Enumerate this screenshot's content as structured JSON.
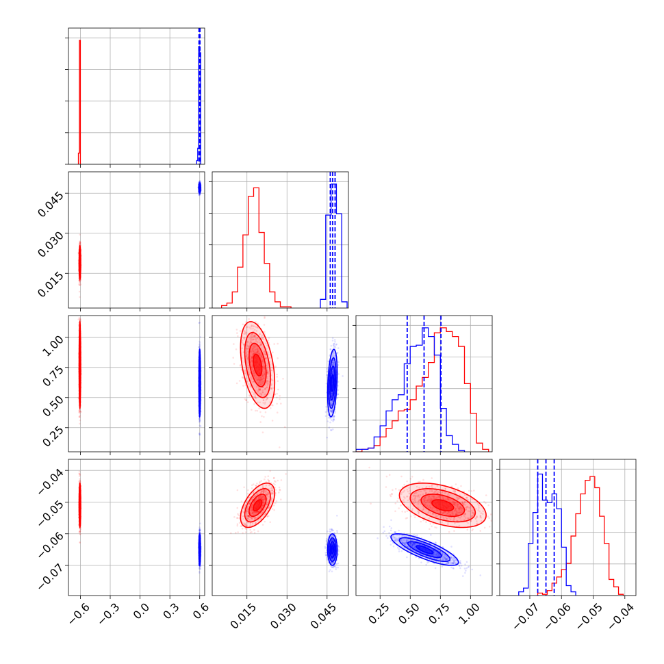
{
  "chart_data": {
    "type": "corner",
    "parameters": [
      {
        "ticks": [
          -0.6,
          -0.3,
          0.0,
          0.3,
          0.6
        ],
        "tick_labels": [
          "−0.6",
          "−0.3",
          "0.0",
          "0.3",
          "0.6"
        ]
      },
      {
        "ticks": [
          0.015,
          0.03,
          0.045
        ],
        "tick_labels": [
          "0.015",
          "0.030",
          "0.045"
        ]
      },
      {
        "ticks": [
          0.25,
          0.5,
          0.75,
          1.0
        ],
        "tick_labels": [
          "0.25",
          "0.50",
          "0.75",
          "1.00"
        ]
      },
      {
        "ticks": [
          -0.07,
          -0.06,
          -0.05,
          -0.04
        ],
        "tick_labels": [
          "−0.07",
          "−0.06",
          "−0.05",
          "−0.04"
        ]
      }
    ],
    "ranges": [
      [
        -0.72,
        0.65
      ],
      [
        0.002,
        0.053
      ],
      [
        0.05,
        1.18
      ],
      [
        -0.0795,
        -0.0365
      ]
    ],
    "grid": true,
    "series": [
      {
        "color": "#ff0000",
        "center": [
          -0.605,
          0.019,
          0.77,
          -0.051
        ],
        "sigma": [
          0.004,
          0.0032,
          0.18,
          0.0035
        ],
        "correlation": {
          "0-1": 0.0,
          "0-2": 0.0,
          "0-3": 0.0,
          "1-2": -0.4,
          "1-3": 0.55,
          "2-3": -0.45
        },
        "histograms": [
          {
            "edges": [
              -0.62,
              -0.61,
              -0.6
            ],
            "counts": [
              0.09,
              1.0
            ]
          },
          {
            "edges": [
              0.0055,
              0.0075,
              0.0095,
              0.0115,
              0.0135,
              0.0155,
              0.0175,
              0.0195,
              0.0215,
              0.0235,
              0.0255,
              0.0275,
              0.0295,
              0.0315
            ],
            "counts": [
              0.02,
              0.04,
              0.13,
              0.33,
              0.59,
              0.9,
              0.97,
              0.61,
              0.36,
              0.13,
              0.05,
              0.01,
              0.01
            ]
          },
          {
            "edges": [
              0.05,
              0.1,
              0.15,
              0.2,
              0.25,
              0.3,
              0.35,
              0.4,
              0.45,
              0.5,
              0.55,
              0.6,
              0.65,
              0.7,
              0.75,
              0.8,
              0.85,
              0.9,
              0.95,
              1.0,
              1.05,
              1.1,
              1.15
            ],
            "counts": [
              0.0,
              0.02,
              0.03,
              0.05,
              0.12,
              0.19,
              0.25,
              0.33,
              0.34,
              0.42,
              0.53,
              0.6,
              0.72,
              0.96,
              1.0,
              0.97,
              0.93,
              0.85,
              0.55,
              0.31,
              0.07,
              0.02
            ]
          },
          {
            "edges": [
              -0.0675,
              -0.066,
              -0.0645,
              -0.063,
              -0.0615,
              -0.06,
              -0.0585,
              -0.057,
              -0.0555,
              -0.054,
              -0.0525,
              -0.051,
              -0.0495,
              -0.048,
              -0.0465,
              -0.045,
              -0.0435,
              -0.042,
              -0.0405
            ],
            "counts": [
              0.02,
              0.01,
              0.04,
              0.1,
              0.15,
              0.21,
              0.26,
              0.48,
              0.66,
              0.82,
              0.93,
              0.96,
              0.87,
              0.64,
              0.42,
              0.13,
              0.07,
              0.01
            ]
          }
        ]
      },
      {
        "color": "#0000ff",
        "center": [
          0.6,
          0.047,
          0.62,
          -0.065
        ],
        "sigma": [
          0.004,
          0.0009,
          0.14,
          0.0025
        ],
        "correlation": {
          "0-1": 0.0,
          "0-2": 0.0,
          "0-3": 0.0,
          "1-2": 0.3,
          "1-3": 0.0,
          "2-3": -0.8
        },
        "histograms": [
          {
            "edges": [
              0.57,
              0.58,
              0.59,
              0.6,
              0.61
            ],
            "counts": [
              0.03,
              0.13,
              0.95,
              0.9
            ]
          },
          {
            "edges": [
              0.0425,
              0.0445,
              0.0465,
              0.0485,
              0.0505,
              0.0525
            ],
            "counts": [
              0.07,
              0.75,
              1.0,
              0.76,
              0.05
            ]
          },
          {
            "edges": [
              0.05,
              0.1,
              0.15,
              0.2,
              0.25,
              0.3,
              0.35,
              0.4,
              0.45,
              0.5,
              0.55,
              0.6,
              0.65,
              0.7,
              0.75,
              0.8,
              0.85,
              0.9,
              0.95
            ],
            "counts": [
              0.02,
              0.02,
              0.03,
              0.12,
              0.21,
              0.33,
              0.42,
              0.46,
              0.71,
              0.85,
              0.86,
              1.0,
              0.93,
              0.78,
              0.35,
              0.13,
              0.06,
              0.01
            ]
          },
          {
            "edges": [
              -0.0735,
              -0.072,
              -0.0705,
              -0.069,
              -0.0675,
              -0.066,
              -0.0645,
              -0.063,
              -0.0615,
              -0.06,
              -0.0585,
              -0.057,
              -0.0555
            ],
            "counts": [
              0.03,
              0.06,
              0.42,
              0.67,
              0.98,
              0.77,
              0.75,
              0.82,
              0.7,
              0.39,
              0.08,
              0.03
            ]
          }
        ],
        "quantile_lines": [
          [
            0.593,
            0.599,
            0.603
          ],
          [
            0.0462,
            0.0471,
            0.048
          ],
          [
            0.475,
            0.615,
            0.755
          ],
          [
            -0.0675,
            -0.0649,
            -0.0623
          ]
        ]
      }
    ]
  }
}
